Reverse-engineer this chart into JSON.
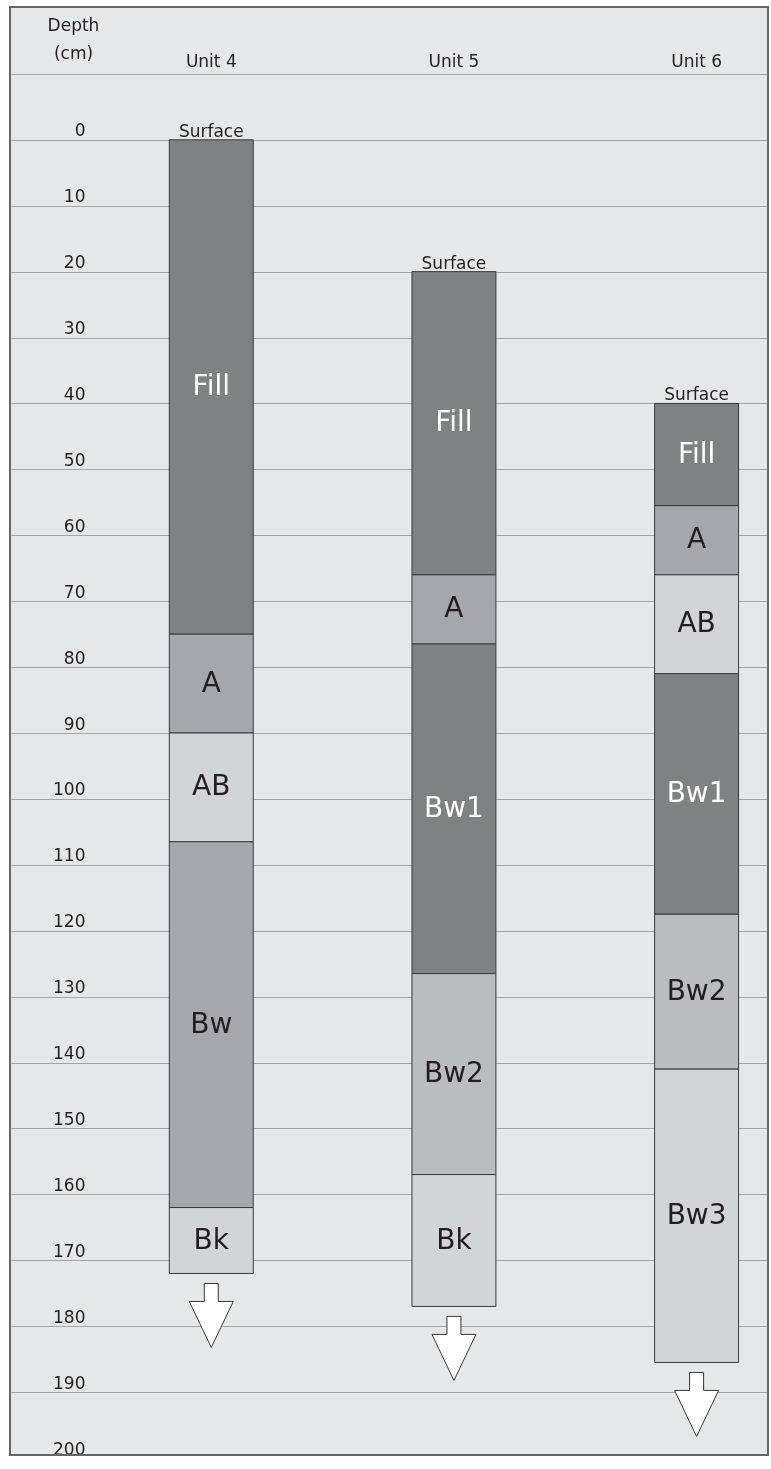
{
  "chart_data": {
    "type": "bar",
    "ylabel": "Depth (cm)",
    "categories": [
      "Unit 4",
      "Unit 5",
      "Unit 6"
    ],
    "series": [
      {
        "base": [
          0,
          20,
          40
        ],
        "values": [
          75,
          46,
          15.5
        ],
        "colors": [
          "#808183",
          "#808183",
          "#808183"
        ],
        "value_labels": [
          "Fill",
          "Fill",
          "Fill"
        ]
      },
      {
        "base": [
          75,
          66,
          55.5
        ],
        "values": [
          15,
          10.5,
          10.5
        ],
        "colors": [
          "#a6a7aa",
          "#a6a7aa",
          "#a6a7aa"
        ],
        "value_labels": [
          "A",
          "A",
          "A"
        ]
      },
      {
        "base": [
          90,
          76.5,
          66
        ],
        "values": [
          16.5,
          50,
          15
        ],
        "colors": [
          "#d3d4d6",
          "#808183",
          "#d3d4d6"
        ],
        "value_labels": [
          "AB",
          "Bw1",
          "AB"
        ]
      },
      {
        "base": [
          106.5,
          126.5,
          81
        ],
        "values": [
          55.5,
          30.5,
          36.5
        ],
        "colors": [
          "#a6a7aa",
          "#bbbcbe",
          "#808183"
        ],
        "value_labels": [
          "Bw",
          "Bw2",
          "Bw1"
        ]
      },
      {
        "base": [
          162,
          157,
          117.5
        ],
        "values": [
          10,
          20,
          23.5
        ],
        "colors": [
          "#d3d4d6",
          "#d3d4d6",
          "#bbbcbe"
        ],
        "value_labels": [
          "Bk",
          "Bk",
          "Bw2"
        ]
      },
      {
        "base": [
          null,
          null,
          141
        ],
        "values": [
          null,
          null,
          44.5
        ],
        "colors": [
          null,
          null,
          "#d3d4d6"
        ],
        "value_labels": [
          null,
          null,
          "Bw3"
        ]
      }
    ],
    "annotations": [
      {
        "text": "Surface",
        "x": "Unit 4",
        "y": 0
      },
      {
        "text": "Surface",
        "x": "Unit 5",
        "y": 20
      },
      {
        "text": "Surface",
        "x": "Unit 6",
        "y": 40
      }
    ],
    "ylim": [
      200,
      -20
    ],
    "yticks": [
      {
        "value": -10,
        "label": null
      },
      0,
      10,
      20,
      30,
      40,
      50,
      60,
      70,
      80,
      90,
      100,
      110,
      120,
      130,
      140,
      150,
      160,
      170,
      180,
      190,
      200
    ],
    "grid": "y"
  }
}
